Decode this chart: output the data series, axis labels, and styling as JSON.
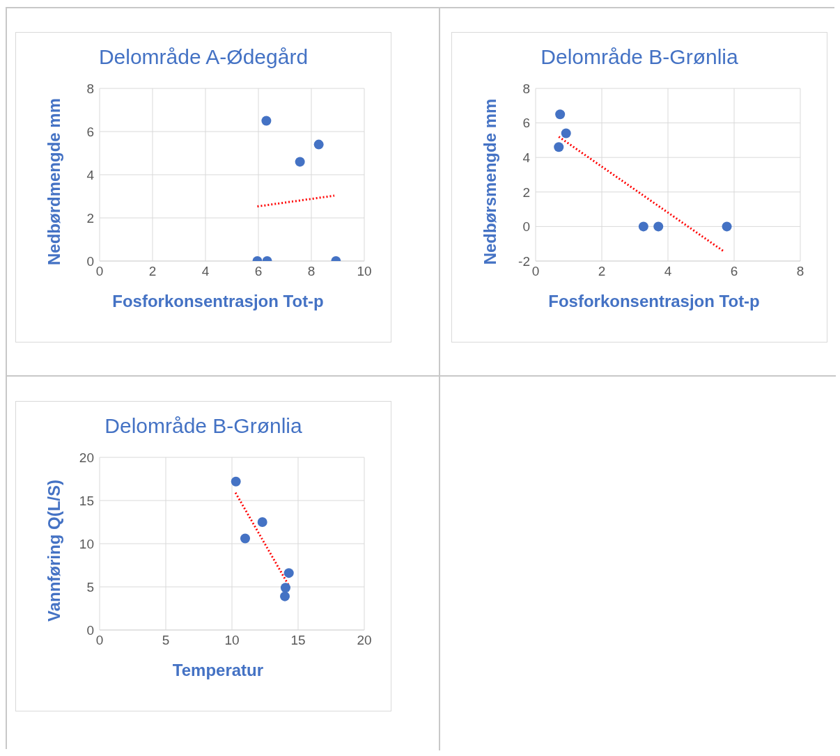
{
  "chart_data": [
    {
      "type": "scatter",
      "title": "Delområde A-Ødegård",
      "xlabel": "Fosforkonsentrasjon Tot-p",
      "ylabel": "Nedbørdmengde mm",
      "xlim": [
        0,
        10
      ],
      "xticks": [
        0,
        2,
        4,
        6,
        8,
        10
      ],
      "ylim": [
        0,
        8
      ],
      "yticks": [
        0,
        2,
        4,
        6,
        8
      ],
      "grid": true,
      "legend": false,
      "series": [
        {
          "type": "scatter",
          "color": "#4472c4",
          "marker": "circle",
          "x": [
            6.3,
            7.57,
            8.28,
            5.96,
            6.33,
            8.93
          ],
          "values": [
            6.5,
            4.6,
            5.4,
            0,
            0,
            0
          ]
        },
        {
          "type": "line",
          "color": "#ff0000",
          "line_style": "dotted",
          "marker": "none",
          "x": [
            5.96,
            8.87
          ],
          "values": [
            2.53,
            3.03
          ]
        }
      ]
    },
    {
      "type": "scatter",
      "title": "Delområde B-Grønlia",
      "xlabel": "Fosforkonsentrasjon Tot-p",
      "ylabel": "Nedbørsmengde mm",
      "xlim": [
        0,
        8
      ],
      "xticks": [
        0,
        2,
        4,
        6,
        8
      ],
      "ylim": [
        -2,
        8
      ],
      "yticks": [
        -2,
        0,
        2,
        4,
        6,
        8
      ],
      "grid": true,
      "legend": false,
      "series": [
        {
          "type": "scatter",
          "color": "#4472c4",
          "marker": "circle",
          "x": [
            0.74,
            0.7,
            0.92,
            3.26,
            3.71,
            5.78
          ],
          "values": [
            6.5,
            4.6,
            5.4,
            0,
            0,
            0
          ]
        },
        {
          "type": "line",
          "color": "#ff0000",
          "line_style": "dotted",
          "marker": "none",
          "x": [
            0.7,
            5.68
          ],
          "values": [
            5.2,
            -1.43
          ]
        }
      ]
    },
    {
      "type": "scatter",
      "title": "Delområde B-Grønlia",
      "xlabel": "Temperatur",
      "ylabel": "Vannføring Q(L/S)",
      "xlim": [
        0,
        20
      ],
      "xticks": [
        0,
        5,
        10,
        15,
        20
      ],
      "ylim": [
        0,
        20
      ],
      "yticks": [
        0,
        5,
        10,
        15,
        20
      ],
      "grid": true,
      "legend": false,
      "series": [
        {
          "type": "scatter",
          "color": "#4472c4",
          "marker": "circle",
          "x": [
            10.3,
            11.0,
            12.3,
            14.3,
            14.05,
            14.0
          ],
          "values": [
            17.2,
            10.6,
            12.5,
            6.6,
            4.9,
            3.9
          ]
        },
        {
          "type": "line",
          "color": "#ff0000",
          "line_style": "dotted",
          "marker": "none",
          "x": [
            10.27,
            14.28
          ],
          "values": [
            15.9,
            5.2
          ]
        }
      ]
    }
  ]
}
